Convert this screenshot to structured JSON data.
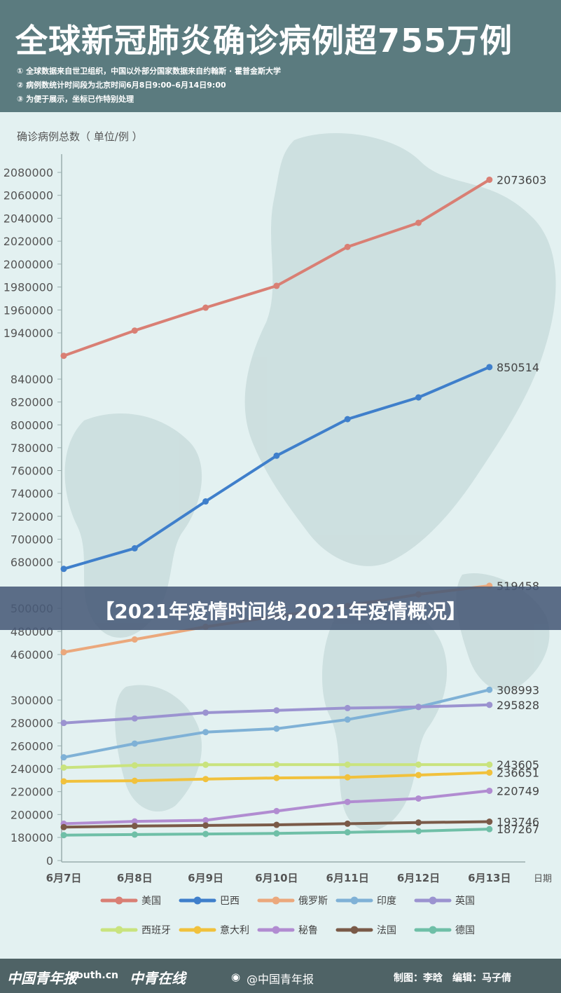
{
  "header": {
    "title": "全球新冠肺炎确诊病例超755万例",
    "notes": [
      "① 全球数据来自世卫组织，中国以外部分国家数据来自约翰斯 · 霍普金斯大学",
      "② 病例数统计时间段为北京时间6月8日9:00–6月14日9:00",
      "③ 为便于展示，坐标已作特别处理"
    ]
  },
  "banner": {
    "text": "【2021年疫情时间线,2021年疫情概况】"
  },
  "footer": {
    "logos": [
      "中国青年报",
      "youth.cn",
      "中青在线"
    ],
    "weibo": "@中国青年报",
    "credit": "制图：李晗　编辑：马子倩"
  },
  "chart_data": {
    "type": "line",
    "ylabel": "确诊病例总数（ 单位/例 ）",
    "xlabel": "日期",
    "categories": [
      "6月7日",
      "6月8日",
      "6月9日",
      "6月10日",
      "6月11日",
      "6月12日",
      "6月13日"
    ],
    "y_axis_broken": true,
    "y_tick_labels": [
      "2080000",
      "2060000",
      "2040000",
      "2020000",
      "2000000",
      "1980000",
      "1960000",
      "1940000",
      "840000",
      "820000",
      "800000",
      "780000",
      "760000",
      "740000",
      "720000",
      "700000",
      "680000",
      "500000",
      "480000",
      "460000",
      "300000",
      "280000",
      "260000",
      "240000",
      "220000",
      "200000",
      "180000",
      "0"
    ],
    "series": [
      {
        "name": "美国",
        "color": "#d97f74",
        "values": [
          1920000,
          1942000,
          1962000,
          1981000,
          2015000,
          2036000,
          2073603
        ],
        "end_label": "2073603"
      },
      {
        "name": "巴西",
        "color": "#3f7fcb",
        "values": [
          674000,
          692000,
          733000,
          773000,
          805000,
          824000,
          850514
        ],
        "end_label": "850514"
      },
      {
        "name": "俄罗斯",
        "color": "#eba87c",
        "values": [
          462000,
          473000,
          484000,
          493000,
          502000,
          512000,
          519458
        ],
        "end_label": "519458"
      },
      {
        "name": "印度",
        "color": "#7fb1d6",
        "values": [
          250000,
          262000,
          272000,
          275000,
          283000,
          294000,
          308993
        ],
        "end_label": "308993"
      },
      {
        "name": "英国",
        "color": "#9b93d0",
        "values": [
          280000,
          284000,
          289000,
          291000,
          293000,
          294000,
          295828
        ],
        "end_label": "295828"
      },
      {
        "name": "西班牙",
        "color": "#c9e37e",
        "values": [
          241000,
          243000,
          243500,
          243600,
          243600,
          243600,
          243605
        ],
        "end_label": "243605"
      },
      {
        "name": "意大利",
        "color": "#f1c13c",
        "values": [
          229000,
          229500,
          231000,
          232000,
          232500,
          234500,
          236651
        ],
        "end_label": "236651"
      },
      {
        "name": "秘鲁",
        "color": "#b18cd1",
        "values": [
          192000,
          194000,
          195000,
          203000,
          211000,
          214000,
          220749
        ],
        "end_label": "220749"
      },
      {
        "name": "法国",
        "color": "#7a5a48",
        "values": [
          189000,
          190000,
          190500,
          191000,
          192000,
          193000,
          193746
        ],
        "end_label": "193746"
      },
      {
        "name": "德国",
        "color": "#6fbfa7",
        "values": [
          182000,
          182500,
          183000,
          183500,
          184500,
          185500,
          187267
        ],
        "end_label": "187267"
      }
    ]
  }
}
